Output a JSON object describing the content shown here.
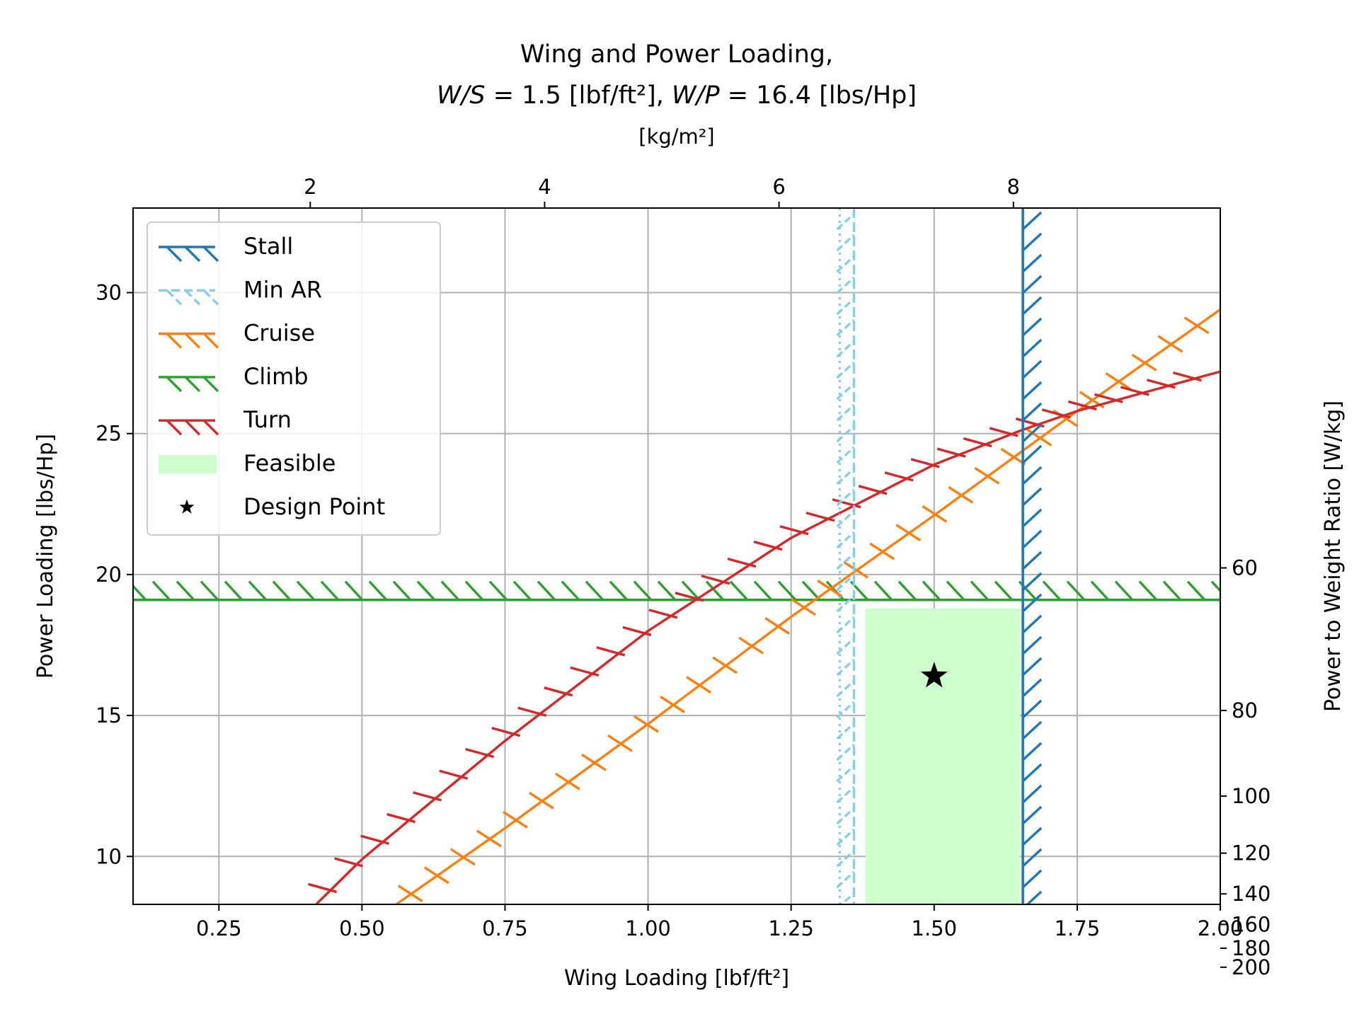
{
  "chart_data": {
    "type": "line",
    "title_line1": "Wing and Power Loading,",
    "title_line2": {
      "ws_symbol": "W/S",
      "ws_value": " = 1.5 [lbf/ft²], ",
      "wp_symbol": "W/P",
      "wp_value": " = 16.4 [lbs/Hp]"
    },
    "xlabel": "Wing Loading [lbf/ft²]",
    "ylabel": "Power Loading [lbs/Hp]",
    "top_xlabel": "[kg/m²]",
    "right_ylabel": "Power to Weight Ratio [W/kg]",
    "xlim": [
      0.1,
      2.0
    ],
    "ylim": [
      8.3,
      33.0
    ],
    "x_ticks": [
      {
        "value": 0.25,
        "label": "0.25"
      },
      {
        "value": 0.5,
        "label": "0.50"
      },
      {
        "value": 0.75,
        "label": "0.75"
      },
      {
        "value": 1.0,
        "label": "1.00"
      },
      {
        "value": 1.25,
        "label": "1.25"
      },
      {
        "value": 1.5,
        "label": "1.50"
      },
      {
        "value": 1.75,
        "label": "1.75"
      },
      {
        "value": 2.0,
        "label": "2.00"
      }
    ],
    "y_ticks": [
      {
        "value": 10,
        "label": "10"
      },
      {
        "value": 15,
        "label": "15"
      },
      {
        "value": 20,
        "label": "20"
      },
      {
        "value": 25,
        "label": "25"
      },
      {
        "value": 30,
        "label": "30"
      }
    ],
    "top_ticks": [
      {
        "value": 2,
        "label": "2"
      },
      {
        "value": 4,
        "label": "4"
      },
      {
        "value": 6,
        "label": "6"
      },
      {
        "value": 8,
        "label": "8"
      }
    ],
    "right_ticks": [
      {
        "value": 60,
        "label": "60"
      },
      {
        "value": 80,
        "label": "80"
      },
      {
        "value": 100,
        "label": "100"
      },
      {
        "value": 120,
        "label": "120"
      },
      {
        "value": 140,
        "label": "140"
      },
      {
        "value": 160,
        "label": "160"
      },
      {
        "value": 180,
        "label": "180"
      },
      {
        "value": 200,
        "label": "200"
      }
    ],
    "grid": true,
    "legend_position": "upper-left",
    "series": [
      {
        "name": "Stall",
        "kind": "vertical",
        "color": "#1f77b4",
        "x": 1.655
      },
      {
        "name": "Min AR",
        "kind": "vertical_dual",
        "color": "#87ceeb",
        "x": 1.36,
        "x_dotted": 1.335
      },
      {
        "name": "Cruise",
        "kind": "curve",
        "color": "#ff7f0e",
        "x": [
          0.56,
          0.75,
          1.0,
          1.25,
          1.5,
          1.75,
          2.0
        ],
        "y": [
          8.3,
          11.0,
          14.7,
          18.5,
          22.1,
          25.8,
          29.4
        ]
      },
      {
        "name": "Climb",
        "kind": "horizontal",
        "color": "#2ca02c",
        "y": 19.1
      },
      {
        "name": "Turn",
        "kind": "curve",
        "color": "#d62728",
        "x": [
          0.42,
          0.5,
          0.75,
          1.0,
          1.25,
          1.5,
          1.65,
          1.75,
          2.0
        ],
        "y": [
          8.3,
          9.9,
          14.1,
          18.0,
          21.3,
          23.9,
          25.1,
          25.8,
          27.2
        ]
      }
    ],
    "feasible": {
      "name": "Feasible",
      "color": "#ccffcc",
      "x": [
        1.38,
        1.65
      ],
      "y": [
        8.3,
        18.8
      ]
    },
    "design_point": {
      "name": "Design Point",
      "x": 1.5,
      "y": 16.4
    }
  }
}
